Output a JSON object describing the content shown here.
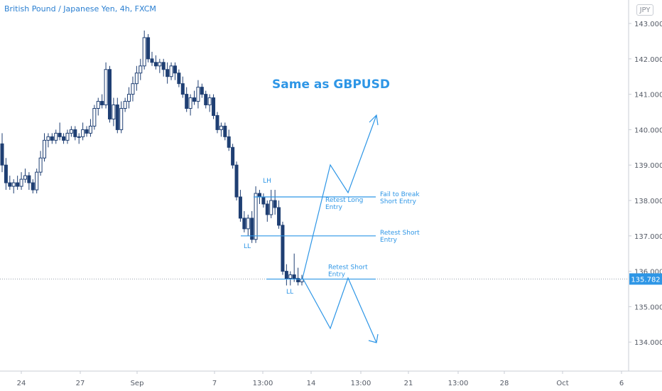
{
  "title": "British Pound / Japanese Yen, 4h, FXCM",
  "currency": "JPY",
  "chart_data": {
    "type": "candlestick",
    "title": "British Pound / Japanese Yen, 4h, FXCM",
    "ylim": [
      133.0,
      143.4
    ],
    "y_ticks": [
      "143.000",
      "142.000",
      "141.000",
      "140.000",
      "139.000",
      "138.000",
      "137.000",
      "136.000",
      "135.000",
      "134.000"
    ],
    "x_ticks": [
      "24",
      "27",
      "Sep",
      "7",
      "13:00",
      "14",
      "13:00",
      "21",
      "13:00",
      "28",
      "Oct",
      "6"
    ],
    "current_price": "135.782",
    "grid": false,
    "candles": [
      [
        139.6,
        139.9,
        138.8,
        139.0
      ],
      [
        139.0,
        139.2,
        138.3,
        138.5
      ],
      [
        138.5,
        138.7,
        138.3,
        138.4
      ],
      [
        138.4,
        138.6,
        138.2,
        138.5
      ],
      [
        138.5,
        138.7,
        138.3,
        138.4
      ],
      [
        138.4,
        138.8,
        138.3,
        138.6
      ],
      [
        138.6,
        138.9,
        138.5,
        138.7
      ],
      [
        138.7,
        138.8,
        138.3,
        138.5
      ],
      [
        138.5,
        138.6,
        138.2,
        138.3
      ],
      [
        138.3,
        138.9,
        138.2,
        138.8
      ],
      [
        138.8,
        139.4,
        138.7,
        139.2
      ],
      [
        139.2,
        139.9,
        139.1,
        139.7
      ],
      [
        139.7,
        139.9,
        139.5,
        139.8
      ],
      [
        139.8,
        139.9,
        139.6,
        139.7
      ],
      [
        139.7,
        140.0,
        139.6,
        139.9
      ],
      [
        139.9,
        140.2,
        139.7,
        139.8
      ],
      [
        139.8,
        139.9,
        139.6,
        139.7
      ],
      [
        139.7,
        140.0,
        139.6,
        139.9
      ],
      [
        139.9,
        140.1,
        139.8,
        140.0
      ],
      [
        140.0,
        140.1,
        139.7,
        139.8
      ],
      [
        139.8,
        139.9,
        139.6,
        139.8
      ],
      [
        139.8,
        140.2,
        139.7,
        140.0
      ],
      [
        140.0,
        140.1,
        139.8,
        139.9
      ],
      [
        139.9,
        140.3,
        139.8,
        140.1
      ],
      [
        140.1,
        140.7,
        140.0,
        140.6
      ],
      [
        140.6,
        140.9,
        140.4,
        140.8
      ],
      [
        140.8,
        141.0,
        140.6,
        140.7
      ],
      [
        140.7,
        141.9,
        140.6,
        141.7
      ],
      [
        141.7,
        141.8,
        140.2,
        140.3
      ],
      [
        140.3,
        140.9,
        140.1,
        140.7
      ],
      [
        140.7,
        140.9,
        139.9,
        140.0
      ],
      [
        140.0,
        140.8,
        139.9,
        140.6
      ],
      [
        140.6,
        140.9,
        140.5,
        140.8
      ],
      [
        140.8,
        141.2,
        140.6,
        141.0
      ],
      [
        141.0,
        141.5,
        140.8,
        141.3
      ],
      [
        141.3,
        141.8,
        141.1,
        141.6
      ],
      [
        141.6,
        142.0,
        141.4,
        141.8
      ],
      [
        141.8,
        142.8,
        141.7,
        142.6
      ],
      [
        142.6,
        142.7,
        141.9,
        142.0
      ],
      [
        142.0,
        142.2,
        141.8,
        141.9
      ],
      [
        141.9,
        142.1,
        141.7,
        141.8
      ],
      [
        141.8,
        142.0,
        141.6,
        141.9
      ],
      [
        141.9,
        142.0,
        141.5,
        141.7
      ],
      [
        141.7,
        141.9,
        141.3,
        141.5
      ],
      [
        141.5,
        141.9,
        141.4,
        141.8
      ],
      [
        141.8,
        141.9,
        141.4,
        141.6
      ],
      [
        141.6,
        141.7,
        141.2,
        141.3
      ],
      [
        141.3,
        141.5,
        140.9,
        141.0
      ],
      [
        141.0,
        141.2,
        140.5,
        140.6
      ],
      [
        140.6,
        141.0,
        140.4,
        140.9
      ],
      [
        140.9,
        141.1,
        140.7,
        140.8
      ],
      [
        140.8,
        141.4,
        140.6,
        141.2
      ],
      [
        141.2,
        141.3,
        140.9,
        141.0
      ],
      [
        141.0,
        141.1,
        140.6,
        140.7
      ],
      [
        140.7,
        141.0,
        140.5,
        140.9
      ],
      [
        140.9,
        141.0,
        140.3,
        140.4
      ],
      [
        140.4,
        140.5,
        139.9,
        140.0
      ],
      [
        140.0,
        140.2,
        139.8,
        140.1
      ],
      [
        140.1,
        140.2,
        139.7,
        139.8
      ],
      [
        139.8,
        140.0,
        139.4,
        139.5
      ],
      [
        139.5,
        139.6,
        138.9,
        139.0
      ],
      [
        139.0,
        139.1,
        138.0,
        138.1
      ],
      [
        138.1,
        138.3,
        137.4,
        137.5
      ],
      [
        137.5,
        137.7,
        137.1,
        137.2
      ],
      [
        137.2,
        137.6,
        137.0,
        137.5
      ],
      [
        137.5,
        137.7,
        136.8,
        136.9
      ],
      [
        136.9,
        138.4,
        136.8,
        138.2
      ],
      [
        138.2,
        138.3,
        137.9,
        138.1
      ],
      [
        138.1,
        138.2,
        137.8,
        137.9
      ],
      [
        137.9,
        138.0,
        137.4,
        137.6
      ],
      [
        137.6,
        138.3,
        137.5,
        138.0
      ],
      [
        138.0,
        138.3,
        137.6,
        137.8
      ],
      [
        137.8,
        138.0,
        137.2,
        137.3
      ],
      [
        137.3,
        137.4,
        135.9,
        136.0
      ],
      [
        136.0,
        136.2,
        135.6,
        135.8
      ],
      [
        135.8,
        136.0,
        135.6,
        135.9
      ],
      [
        135.9,
        136.5,
        135.7,
        135.8
      ],
      [
        135.8,
        136.1,
        135.6,
        135.7
      ],
      [
        135.7,
        135.9,
        135.6,
        135.78
      ]
    ],
    "annotations": {
      "headline": "Same as GBPUSD",
      "labels": [
        "LH",
        "LL",
        "LL"
      ],
      "levels": [
        {
          "price": 138.1,
          "label": "Fail to Break\nShort Entry"
        },
        {
          "price": 137.0,
          "label": "Retest Short\nEntry"
        },
        {
          "price": 135.78,
          "label": "Retest Short\nEntry"
        }
      ],
      "middle_label": "Retest Long\nEntry"
    },
    "colors": {
      "candle": "#1f3f73",
      "annotation": "#2e96e6",
      "axis_text": "#555b66",
      "price_tag": "#2e96e6"
    }
  }
}
